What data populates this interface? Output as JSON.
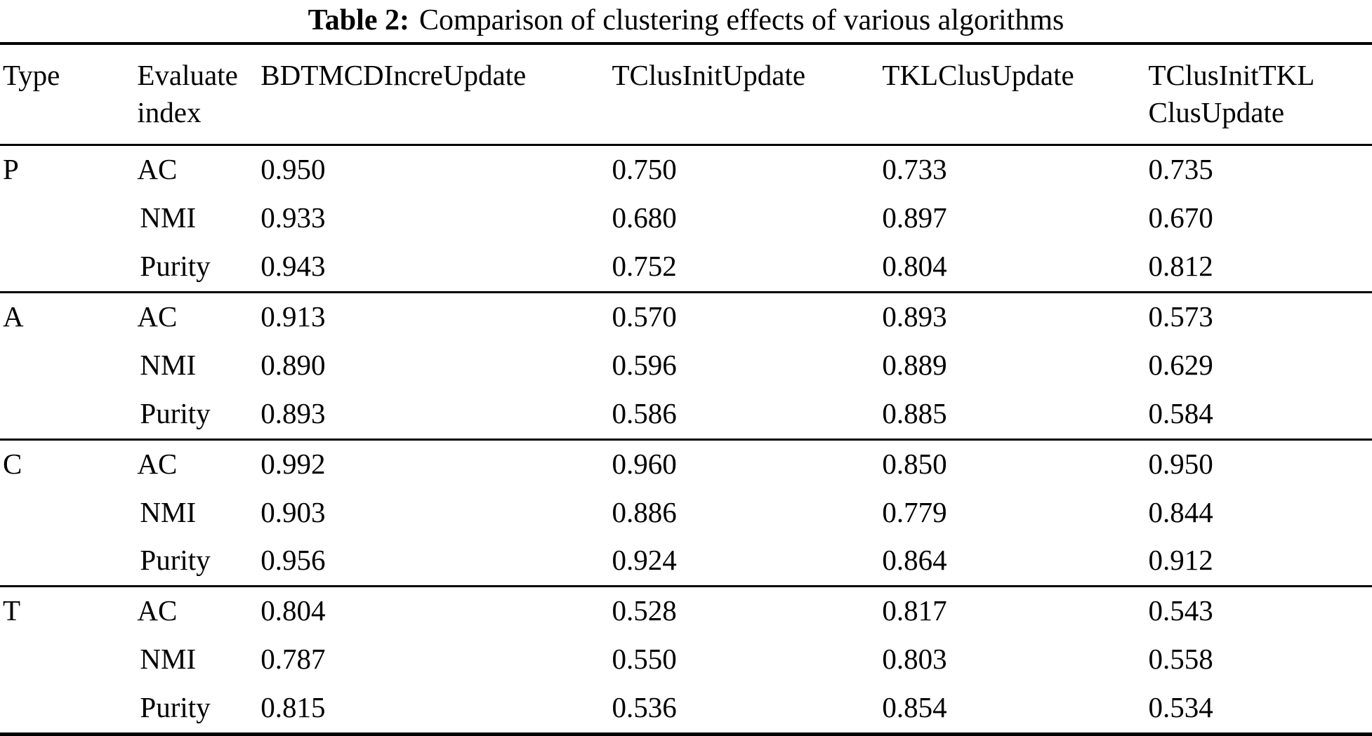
{
  "caption": {
    "label": "Table 2:",
    "text": "Comparison of clustering effects of various algorithms"
  },
  "table": {
    "columns": [
      {
        "id": "type",
        "lines": [
          "Type"
        ]
      },
      {
        "id": "evaluate-index",
        "lines": [
          "Evaluate",
          "index"
        ]
      },
      {
        "id": "bdtmcd-incre-update",
        "lines": [
          "BDTMCDIncreUpdate"
        ]
      },
      {
        "id": "tclus-init-update",
        "lines": [
          "TClusInitUpdate"
        ]
      },
      {
        "id": "tkl-clus-update",
        "lines": [
          "TKLClusUpdate"
        ]
      },
      {
        "id": "tclus-init-tkl-clus-update",
        "lines": [
          "TClusInitTKL",
          "ClusUpdate"
        ]
      }
    ],
    "groups": [
      {
        "type": "P",
        "rows": [
          {
            "index": "AC",
            "values": [
              "0.950",
              "0.750",
              "0.733",
              "0.735"
            ]
          },
          {
            "index": "NMI",
            "values": [
              "0.933",
              "0.680",
              "0.897",
              "0.670"
            ]
          },
          {
            "index": "Purity",
            "values": [
              "0.943",
              "0.752",
              "0.804",
              "0.812"
            ]
          }
        ]
      },
      {
        "type": "A",
        "rows": [
          {
            "index": "AC",
            "values": [
              "0.913",
              "0.570",
              "0.893",
              "0.573"
            ]
          },
          {
            "index": "NMI",
            "values": [
              "0.890",
              "0.596",
              "0.889",
              "0.629"
            ]
          },
          {
            "index": "Purity",
            "values": [
              "0.893",
              "0.586",
              "0.885",
              "0.584"
            ]
          }
        ]
      },
      {
        "type": "C",
        "rows": [
          {
            "index": "AC",
            "values": [
              "0.992",
              "0.960",
              "0.850",
              "0.950"
            ]
          },
          {
            "index": "NMI",
            "values": [
              "0.903",
              "0.886",
              "0.779",
              "0.844"
            ]
          },
          {
            "index": "Purity",
            "values": [
              "0.956",
              "0.924",
              "0.864",
              "0.912"
            ]
          }
        ]
      },
      {
        "type": "T",
        "rows": [
          {
            "index": "AC",
            "values": [
              "0.804",
              "0.528",
              "0.817",
              "0.543"
            ]
          },
          {
            "index": "NMI",
            "values": [
              "0.787",
              "0.550",
              "0.803",
              "0.558"
            ]
          },
          {
            "index": "Purity",
            "values": [
              "0.815",
              "0.536",
              "0.854",
              "0.534"
            ]
          }
        ]
      }
    ]
  },
  "colors": {
    "text": "#000000",
    "rule": "#000000",
    "background": "#ffffff"
  }
}
